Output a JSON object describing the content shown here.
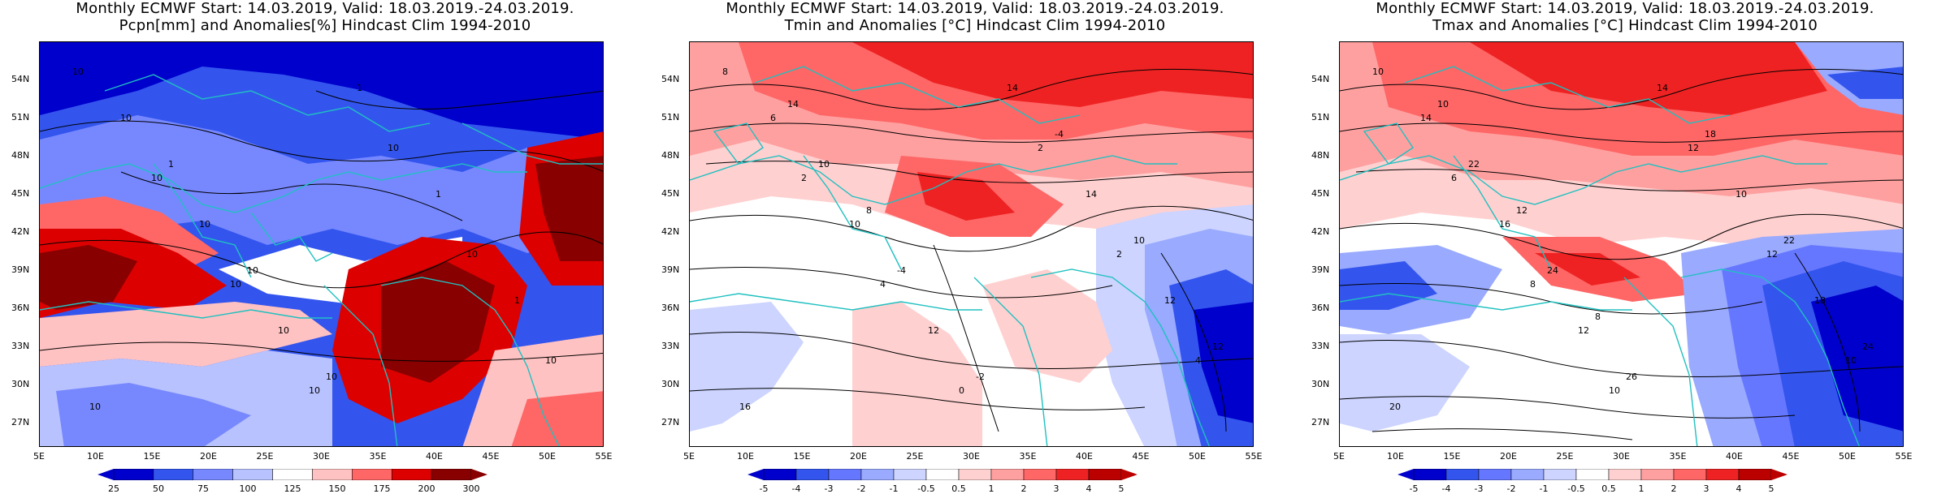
{
  "panels": [
    {
      "title_line1": "Monthly ECMWF Start: 14.03.2019, Valid: 18.03.2019.-24.03.2019.",
      "title_line2": "Pcpn[mm] and Anomalies[%] Hindcast Clim 1994-2010",
      "colorbar": [
        "25",
        "50",
        "75",
        "100",
        "125",
        "150",
        "175",
        "200",
        "300"
      ],
      "colors": [
        "#0000cc",
        "#3355ee",
        "#7788ff",
        "#b8c2ff",
        "#ffffff",
        "#ffc2c2",
        "#ff6666",
        "#dd0000",
        "#880000"
      ]
    },
    {
      "title_line1": "Monthly ECMWF Start: 14.03.2019, Valid: 18.03.2019.-24.03.2019.",
      "title_line2": "Tmin and Anomalies [°C] Hindcast Clim 1994-2010",
      "colorbar": [
        "-5",
        "-4",
        "-3",
        "-2",
        "-1",
        "-0.5",
        "0.5",
        "1",
        "2",
        "3",
        "4",
        "5"
      ],
      "colors": [
        "#0000cc",
        "#3355ee",
        "#6677ff",
        "#99aaff",
        "#ccd4ff",
        "#ffffff",
        "#ffd0d0",
        "#ffa0a0",
        "#ff6666",
        "#ee2222",
        "#bb0000"
      ]
    },
    {
      "title_line1": "Monthly ECMWF Start: 14.03.2019, Valid: 18.03.2019.-24.03.2019.",
      "title_line2": "Tmax and Anomalies [°C] Hindcast Clim 1994-2010",
      "colorbar": [
        "-5",
        "-4",
        "-3",
        "-2",
        "-1",
        "-0.5",
        "0.5",
        "1",
        "2",
        "3",
        "4",
        "5"
      ],
      "colors": [
        "#0000cc",
        "#3355ee",
        "#6677ff",
        "#99aaff",
        "#ccd4ff",
        "#ffffff",
        "#ffd0d0",
        "#ffa0a0",
        "#ff6666",
        "#ee2222",
        "#bb0000"
      ]
    }
  ],
  "lat_labels": [
    "54N",
    "51N",
    "48N",
    "45N",
    "42N",
    "39N",
    "36N",
    "33N",
    "30N",
    "27N"
  ],
  "lon_labels": [
    "5E",
    "10E",
    "15E",
    "20E",
    "25E",
    "30E",
    "35E",
    "40E",
    "45E",
    "50E",
    "55E"
  ],
  "contour_labels": {
    "p1": [
      "10",
      "10",
      "10",
      "10",
      "10",
      "10",
      "10",
      "10",
      "10",
      "10",
      "1",
      "1",
      "1",
      "10",
      "1",
      "10",
      "10"
    ],
    "p2": [
      "8",
      "2",
      "4",
      "0",
      "2",
      "2",
      "4",
      "6",
      "10",
      "12",
      "14",
      "14",
      "12",
      "16",
      "10",
      "-4",
      "-2",
      "-4",
      "10",
      "12",
      "14",
      "8"
    ],
    "p3": [
      "10",
      "6",
      "8",
      "10",
      "12",
      "12",
      "10",
      "14",
      "16",
      "12",
      "14",
      "10",
      "18",
      "20",
      "22",
      "24",
      "26",
      "18",
      "22",
      "24",
      "10",
      "12",
      "8"
    ]
  }
}
